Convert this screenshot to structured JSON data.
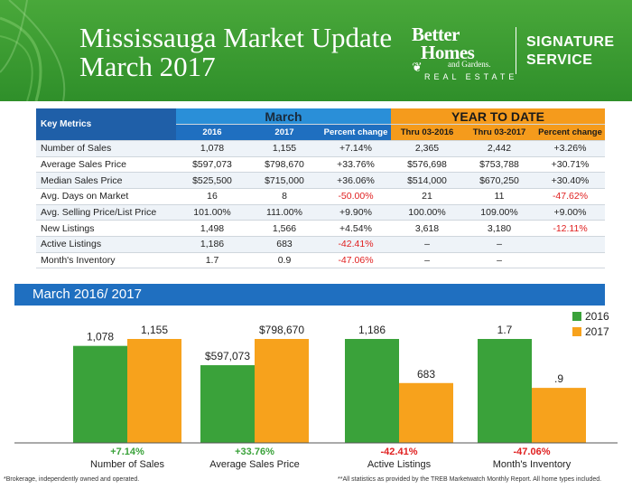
{
  "header": {
    "title_line1": "Mississauga Market Update",
    "title_line2": "March 2017",
    "brand_line1": "Better",
    "brand_line2": "Homes",
    "brand_line3": "and Gardens.",
    "brand_line4": "REAL ESTATE",
    "service_line1": "SIGNATURE",
    "service_line2": "SERVICE"
  },
  "table": {
    "key_metrics_label": "Key Metrics",
    "march_label": "March",
    "ytd_label": "YEAR TO DATE",
    "columns": [
      "2016",
      "2017",
      "Percent change",
      "Thru 03-2016",
      "Thru 03-2017",
      "Percent change"
    ],
    "rows": [
      {
        "metric": "Number of Sales",
        "cells": [
          "1,078",
          "1,155",
          "+7.14%",
          "2,365",
          "2,442",
          "+3.26%"
        ]
      },
      {
        "metric": "Average Sales Price",
        "cells": [
          "$597,073",
          "$798,670",
          "+33.76%",
          "$576,698",
          "$753,788",
          "+30.71%"
        ]
      },
      {
        "metric": "Median Sales Price",
        "cells": [
          "$525,500",
          "$715,000",
          "+36.06%",
          "$514,000",
          "$670,250",
          "+30.40%"
        ]
      },
      {
        "metric": "Avg. Days on Market",
        "cells": [
          "16",
          "8",
          "-50.00%",
          "21",
          "11",
          "-47.62%"
        ]
      },
      {
        "metric": "Avg. Selling Price/List Price",
        "cells": [
          "101.00%",
          "111.00%",
          "+9.90%",
          "100.00%",
          "109.00%",
          "+9.00%"
        ]
      },
      {
        "metric": "New Listings",
        "cells": [
          "1,498",
          "1,566",
          "+4.54%",
          "3,618",
          "3,180",
          "-12.11%"
        ]
      },
      {
        "metric": "Active Listings",
        "cells": [
          "1,186",
          "683",
          "-42.41%",
          "–",
          "–",
          ""
        ]
      },
      {
        "metric": "Month's Inventory",
        "cells": [
          "1.7",
          "0.9",
          "-47.06%",
          "–",
          "–",
          ""
        ]
      }
    ]
  },
  "section_title": "March 2016/ 2017",
  "chart_data": {
    "type": "bar",
    "categories": [
      "Number of Sales",
      "Average Sales Price",
      "Active Listings",
      "Month's Inventory"
    ],
    "series": [
      {
        "name": "2016",
        "values": [
          1078,
          597073,
          1186,
          1.7
        ],
        "labels": [
          "1,078",
          "$597,073",
          "1,186",
          "1.7"
        ],
        "color": "#3aa23a"
      },
      {
        "name": "2017",
        "values": [
          1155,
          798670,
          683,
          0.9
        ],
        "labels": [
          "1,155",
          "$798,670",
          "683",
          ".9"
        ],
        "color": "#f7a21c"
      }
    ],
    "percent_changes": [
      "+7.14%",
      "+33.76%",
      "-42.41%",
      "-47.06%"
    ],
    "percent_colors": [
      "#3aa23a",
      "#3aa23a",
      "#e02020",
      "#e02020"
    ],
    "legend_placement": "top-right"
  },
  "footer": {
    "left": "*Brokerage, independently owned and operated.",
    "right": "**All statistics as provided by the TREB Marketwatch Monthly Report. All home types included."
  }
}
